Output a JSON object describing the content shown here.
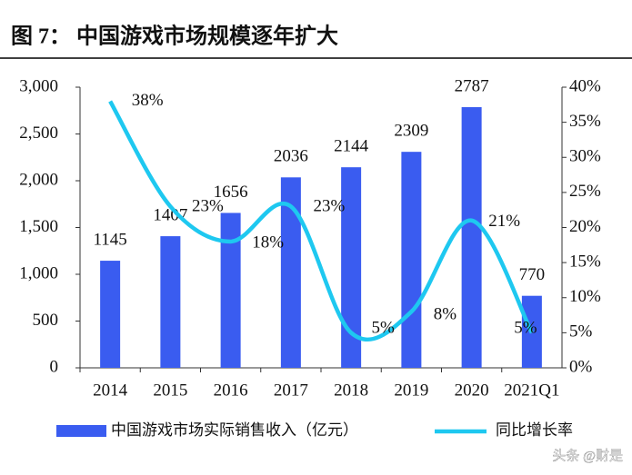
{
  "chart_data": {
    "type": "bar-line",
    "title": "图 7： 中国游戏市场规模逐年扩大",
    "categories": [
      "2014",
      "2015",
      "2016",
      "2017",
      "2018",
      "2019",
      "2020",
      "2021Q1"
    ],
    "series": [
      {
        "name": "中国游戏市场实际销售收入（亿元）",
        "type": "bar",
        "color": "#3a5cf0",
        "values": [
          1145,
          1407,
          1656,
          2036,
          2144,
          2309,
          2787,
          770
        ]
      },
      {
        "name": "同比增长率",
        "type": "line",
        "axis": "y2",
        "color": "#1ec8f0",
        "values": [
          38,
          23,
          18,
          23,
          5,
          8,
          21,
          5
        ],
        "value_labels": [
          "38%",
          "23%",
          "18%",
          "23%",
          "5%",
          "8%",
          "21%",
          "5%"
        ]
      }
    ],
    "ylim": [
      0,
      3000
    ],
    "yticks": [
      0,
      500,
      {
        "value": 1000,
        "label": "1,000"
      },
      {
        "value": 1500,
        "label": "1,500"
      },
      {
        "value": 2000,
        "label": "2,000"
      },
      {
        "value": 2500,
        "label": "2,500"
      },
      {
        "value": 3000,
        "label": "3,000"
      }
    ],
    "y2lim": [
      0,
      40
    ],
    "y2ticks": [
      {
        "value": 0,
        "label": "0%"
      },
      {
        "value": 5,
        "label": "5%"
      },
      {
        "value": 10,
        "label": "10%"
      },
      {
        "value": 15,
        "label": "15%"
      },
      {
        "value": 20,
        "label": "20%"
      },
      {
        "value": 25,
        "label": "25%"
      },
      {
        "value": 30,
        "label": "30%"
      },
      {
        "value": 35,
        "label": "35%"
      },
      {
        "value": 40,
        "label": "40%"
      }
    ],
    "watermark": "头条 @财是"
  }
}
